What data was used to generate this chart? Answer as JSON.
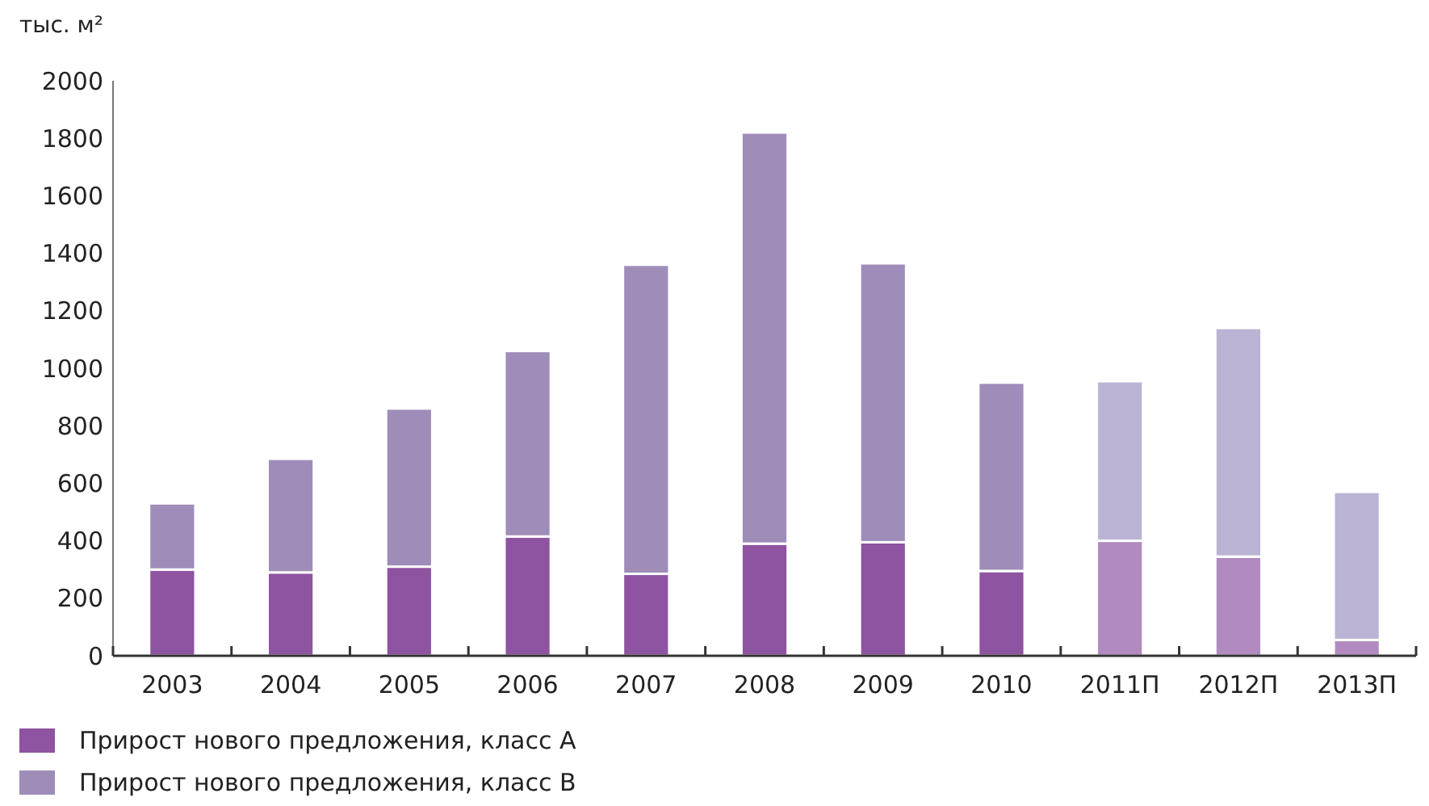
{
  "chart_data": {
    "type": "bar",
    "stacked": true,
    "ylabel": "тыс. м²",
    "categories": [
      "2003",
      "2004",
      "2005",
      "2006",
      "2007",
      "2008",
      "2009",
      "2010",
      "2011П",
      "2012П",
      "2013П"
    ],
    "series": [
      {
        "name": "Прирост нового предложения, класс А",
        "color": "#8e53a1",
        "colors": [
          "#8e53a1",
          "#8e53a1",
          "#8e53a1",
          "#8e53a1",
          "#8e53a1",
          "#8e53a1",
          "#8e53a1",
          "#8e53a1",
          "#b18bbf",
          "#b18bbf",
          "#b18bbf"
        ],
        "values": [
          300,
          290,
          310,
          415,
          285,
          390,
          395,
          295,
          400,
          345,
          55
        ]
      },
      {
        "name": "Прирост нового предложения, класс В",
        "color": "#9e8db9",
        "colors": [
          "#9e8db9",
          "#9e8db9",
          "#9e8db9",
          "#9e8db9",
          "#9e8db9",
          "#9e8db9",
          "#9e8db9",
          "#9e8db9",
          "#bbb3d3",
          "#bbb3d3",
          "#bbb3d3"
        ],
        "values": [
          230,
          395,
          550,
          645,
          1075,
          1430,
          970,
          655,
          555,
          795,
          515
        ]
      }
    ],
    "ylim": [
      0,
      2000
    ],
    "yticks": [
      0,
      200,
      400,
      600,
      800,
      1000,
      1200,
      1400,
      1600,
      1800,
      2000
    ],
    "grid": false,
    "legend": "bottom left"
  }
}
